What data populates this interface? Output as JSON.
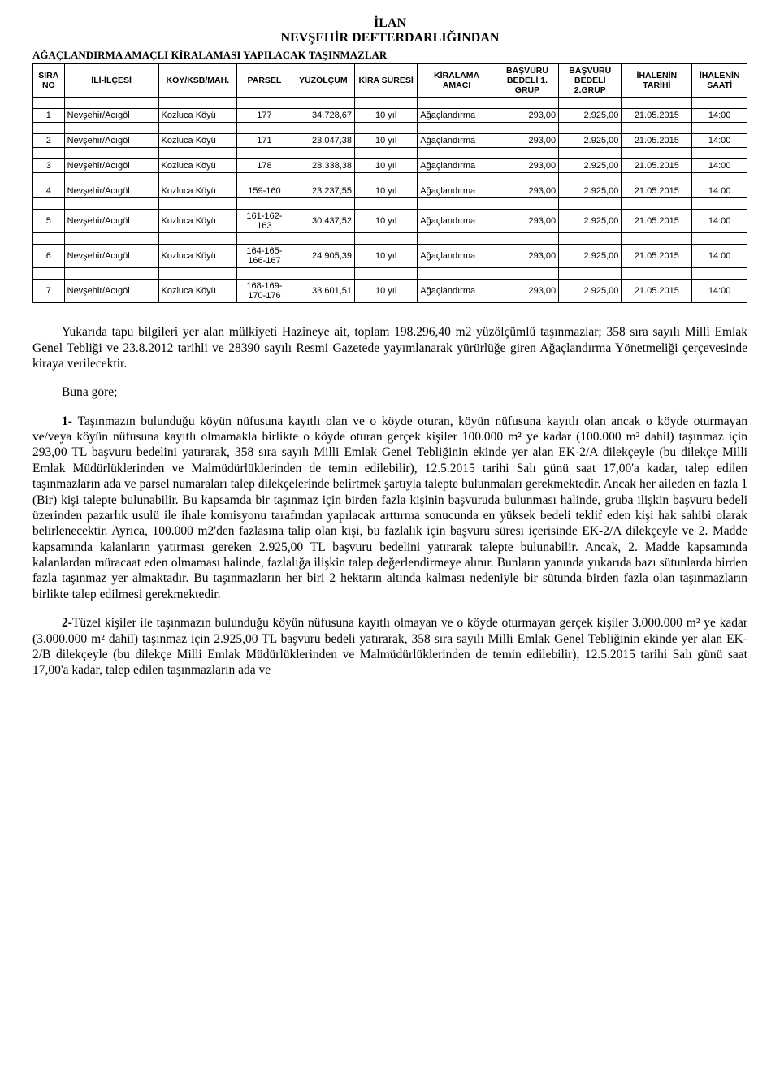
{
  "header": {
    "title1": "İLAN",
    "title2": "NEVŞEHİR DEFTERDARLIĞINDAN",
    "subtitle": "AĞAÇLANDIRMA AMAÇLI KİRALAMASI YAPILACAK TAŞINMAZLAR"
  },
  "table": {
    "columns": [
      "SIRA NO",
      "İLİ-İLÇESİ",
      "KÖY/KSB/MAH.",
      "PARSEL",
      "YÜZÖLÇÜM",
      "KİRA SÜRESİ",
      "KİRALAMA AMACI",
      "BAŞVURU BEDELİ 1. GRUP",
      "BAŞVURU BEDELİ 2.GRUP",
      "İHALENİN TARİHİ",
      "İHALENİN SAATİ"
    ],
    "rows": [
      {
        "no": "1",
        "il": "Nevşehir/Acıgöl",
        "koy": "Kozluca Köyü",
        "parsel": "177",
        "yuz": "34.728,67",
        "sure": "10 yıl",
        "amac": "Ağaçlandırma",
        "b1": "293,00",
        "b2": "2.925,00",
        "tarih": "21.05.2015",
        "saat": "14:00"
      },
      {
        "no": "2",
        "il": "Nevşehir/Acıgöl",
        "koy": "Kozluca Köyü",
        "parsel": "171",
        "yuz": "23.047,38",
        "sure": "10 yıl",
        "amac": "Ağaçlandırma",
        "b1": "293,00",
        "b2": "2.925,00",
        "tarih": "21.05.2015",
        "saat": "14:00"
      },
      {
        "no": "3",
        "il": "Nevşehir/Acıgöl",
        "koy": "Kozluca Köyü",
        "parsel": "178",
        "yuz": "28.338,38",
        "sure": "10 yıl",
        "amac": "Ağaçlandırma",
        "b1": "293,00",
        "b2": "2.925,00",
        "tarih": "21.05.2015",
        "saat": "14:00"
      },
      {
        "no": "4",
        "il": "Nevşehir/Acıgöl",
        "koy": "Kozluca Köyü",
        "parsel": "159-160",
        "yuz": "23.237,55",
        "sure": "10 yıl",
        "amac": "Ağaçlandırma",
        "b1": "293,00",
        "b2": "2.925,00",
        "tarih": "21.05.2015",
        "saat": "14:00"
      },
      {
        "no": "5",
        "il": "Nevşehir/Acıgöl",
        "koy": "Kozluca Köyü",
        "parsel": "161-162-163",
        "yuz": "30.437,52",
        "sure": "10 yıl",
        "amac": "Ağaçlandırma",
        "b1": "293,00",
        "b2": "2.925,00",
        "tarih": "21.05.2015",
        "saat": "14:00"
      },
      {
        "no": "6",
        "il": "Nevşehir/Acıgöl",
        "koy": "Kozluca Köyü",
        "parsel": "164-165-166-167",
        "yuz": "24.905,39",
        "sure": "10 yıl",
        "amac": "Ağaçlandırma",
        "b1": "293,00",
        "b2": "2.925,00",
        "tarih": "21.05.2015",
        "saat": "14:00"
      },
      {
        "no": "7",
        "il": "Nevşehir/Acıgöl",
        "koy": "Kozluca Köyü",
        "parsel": "168-169-170-176",
        "yuz": "33.601,51",
        "sure": "10 yıl",
        "amac": "Ağaçlandırma",
        "b1": "293,00",
        "b2": "2.925,00",
        "tarih": "21.05.2015",
        "saat": "14:00"
      }
    ],
    "col_widths_pct": [
      4,
      12,
      10,
      7,
      8,
      8,
      10,
      8,
      8,
      9,
      7
    ],
    "multiline_parsel_threshold": 8
  },
  "paragraphs": {
    "p1": "Yukarıda tapu bilgileri yer alan mülkiyeti Hazineye ait, toplam 198.296,40 m2 yüzölçümlü taşınmazlar; 358 sıra sayılı Milli Emlak Genel Tebliği ve 23.8.2012 tarihli ve 28390 sayılı Resmi Gazetede yayımlanarak yürürlüğe giren Ağaçlandırma Yönetmeliği çerçevesinde kiraya verilecektir.",
    "p2": "Buna göre;",
    "p3_lead": "1- ",
    "p3": "Taşınmazın bulunduğu köyün nüfusuna kayıtlı olan ve o köyde oturan, köyün nüfusuna kayıtlı olan ancak o köyde oturmayan ve/veya köyün nüfusuna kayıtlı olmamakla birlikte o köyde oturan gerçek kişiler 100.000 m² ye kadar (100.000 m² dahil) taşınmaz için 293,00 TL başvuru bedelini yatırarak, 358 sıra sayılı Milli Emlak Genel Tebliğinin ekinde yer alan EK-2/A dilekçeyle (bu dilekçe Milli Emlak Müdürlüklerinden ve Malmüdürlüklerinden de temin edilebilir), 12.5.2015 tarihi Salı günü saat 17,00'a kadar, talep edilen taşınmazların ada ve parsel numaraları talep dilekçelerinde belirtmek şartıyla talepte bulunmaları gerekmektedir. Ancak her aileden en fazla 1 (Bir) kişi talepte bulunabilir. Bu kapsamda bir taşınmaz için birden fazla kişinin başvuruda bulunması halinde, gruba ilişkin başvuru bedeli üzerinden pazarlık usulü ile ihale komisyonu tarafından yapılacak arttırma sonucunda en yüksek bedeli teklif eden kişi hak sahibi olarak belirlenecektir. Ayrıca, 100.000 m2'den fazlasına talip olan kişi, bu fazlalık için başvuru süresi içerisinde EK-2/A dilekçeyle ve 2. Madde kapsamında kalanların yatırması gereken 2.925,00 TL başvuru bedelini yatırarak talepte bulunabilir. Ancak, 2. Madde kapsamında kalanlardan müracaat eden olmaması halinde, fazlalığa ilişkin talep değerlendirmeye alınır. Bunların yanında yukarıda bazı sütunlarda birden fazla taşınmaz yer almaktadır. Bu taşınmazların her biri 2 hektarın altında kalması nedeniyle bir sütunda birden fazla olan taşınmazların birlikte talep edilmesi gerekmektedir.",
    "p4_lead": "2-",
    "p4": "Tüzel kişiler ile taşınmazın bulunduğu köyün nüfusuna kayıtlı olmayan ve o köyde oturmayan gerçek kişiler 3.000.000 m² ye kadar (3.000.000 m² dahil) taşınmaz için 2.925,00 TL başvuru bedeli yatırarak, 358 sıra sayılı Milli Emlak Genel Tebliğinin ekinde yer alan EK-2/B dilekçeyle (bu dilekçe Milli Emlak Müdürlüklerinden ve Malmüdürlüklerinden de temin edilebilir), 12.5.2015 tarihi Salı günü saat 17,00'a kadar, talep edilen taşınmazların ada ve"
  }
}
